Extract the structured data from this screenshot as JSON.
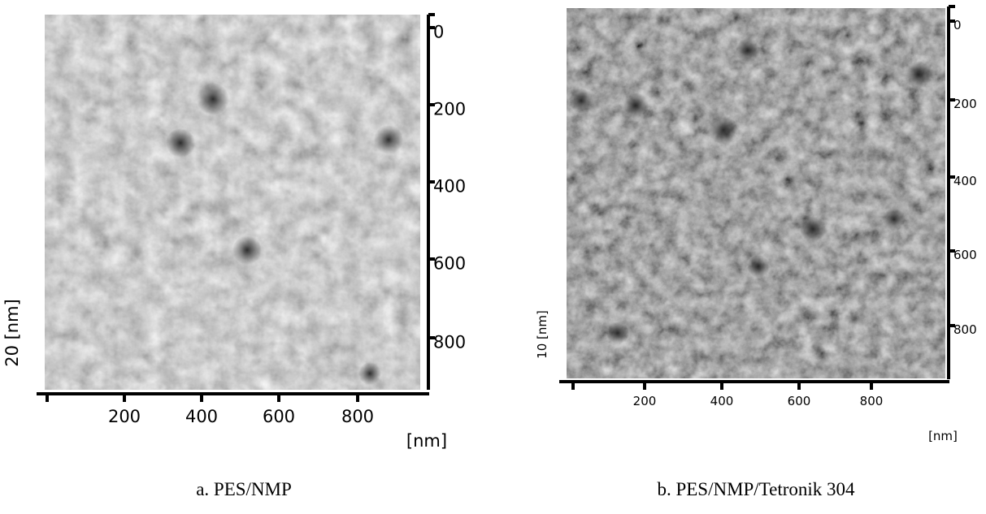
{
  "panels": [
    {
      "caption": "a.  PES/NMP",
      "z_label": "20  [nm]",
      "x_unit": "[nm]",
      "x_ticks": [
        "200",
        "400",
        "600",
        "800"
      ],
      "y_ticks": [
        "0",
        "200",
        "400",
        "600",
        "800"
      ]
    },
    {
      "caption": "b. PES/NMP/Tetronik 304",
      "z_label": "10  [nm]",
      "x_unit": "[nm]",
      "x_ticks": [
        "200",
        "400",
        "600",
        "800"
      ],
      "y_ticks": [
        "0",
        "200",
        "400",
        "600",
        "800"
      ]
    }
  ]
}
